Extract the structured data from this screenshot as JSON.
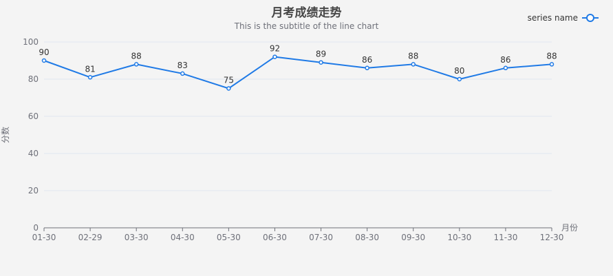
{
  "chart_data": {
    "type": "line",
    "title": "月考成绩走势",
    "subtitle": "This is the subtitle of the line chart",
    "xlabel": "月份",
    "ylabel": "分数",
    "categories": [
      "01-30",
      "02-29",
      "03-30",
      "04-30",
      "05-30",
      "06-30",
      "07-30",
      "08-30",
      "09-30",
      "10-30",
      "11-30",
      "12-30"
    ],
    "series": [
      {
        "name": "series name",
        "values": [
          90,
          81,
          88,
          83,
          75,
          92,
          89,
          86,
          88,
          80,
          86,
          88
        ],
        "color": "#1f7ae6"
      }
    ],
    "ylim": [
      0,
      100
    ],
    "yticks": [
      0,
      20,
      40,
      60,
      80,
      100
    ],
    "grid": true,
    "legend_position": "top-right",
    "data_labels": true
  }
}
